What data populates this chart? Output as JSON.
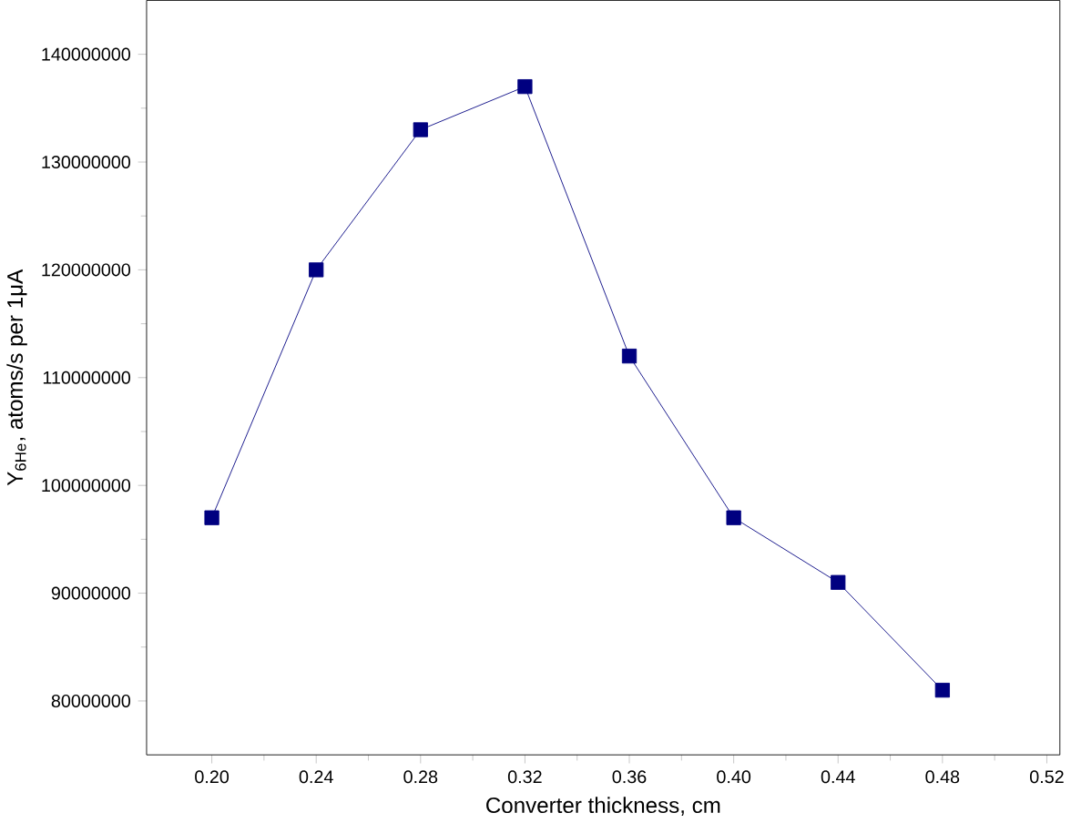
{
  "chart_data": {
    "type": "line",
    "xlabel": "Converter thickness, cm",
    "ylabel": "Y$_{6He}$, atoms/s per 1μA",
    "x": [
      0.2,
      0.24,
      0.28,
      0.32,
      0.36,
      0.4,
      0.44,
      0.48
    ],
    "series": [
      {
        "color": "#000080",
        "values": [
          97000000,
          120000000,
          133000000,
          137000000,
          112000000,
          97000000,
          91000000,
          81000000
        ]
      }
    ],
    "xlim": [
      0.175,
      0.525
    ],
    "ylim": [
      75000000,
      145000000
    ],
    "xticks": [
      {
        "value": 0.2,
        "label": "0.20"
      },
      {
        "value": 0.24,
        "label": "0.24"
      },
      {
        "value": 0.28,
        "label": "0.28"
      },
      {
        "value": 0.32,
        "label": "0.32"
      },
      {
        "value": 0.36,
        "label": "0.36"
      },
      {
        "value": 0.4,
        "label": "0.40"
      },
      {
        "value": 0.44,
        "label": "0.44"
      },
      {
        "value": 0.48,
        "label": "0.48"
      },
      {
        "value": 0.52,
        "label": "0.52"
      }
    ],
    "yticks": [
      80000000,
      90000000,
      100000000,
      110000000,
      120000000,
      130000000,
      140000000
    ],
    "marker": "square",
    "line_style": "solid",
    "grid": false
  }
}
